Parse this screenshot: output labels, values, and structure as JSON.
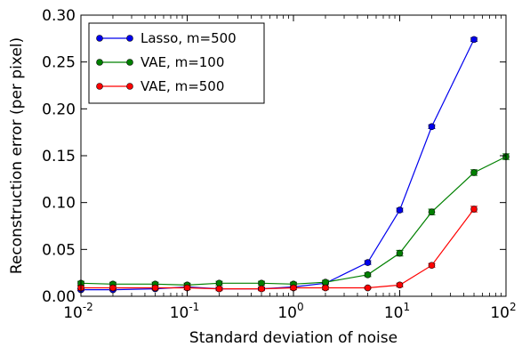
{
  "chart_data": {
    "type": "line",
    "title": "",
    "xlabel": "Standard deviation of noise",
    "ylabel": "Reconstruction error (per pixel)",
    "xscale": "log",
    "xlim": [
      0.01,
      100
    ],
    "ylim": [
      0,
      0.3
    ],
    "xticks": [
      {
        "value": 0.01,
        "base": "10",
        "exp": "-2"
      },
      {
        "value": 0.1,
        "base": "10",
        "exp": "-1"
      },
      {
        "value": 1,
        "base": "10",
        "exp": "0"
      },
      {
        "value": 10,
        "base": "10",
        "exp": "1"
      },
      {
        "value": 100,
        "base": "10",
        "exp": "2"
      }
    ],
    "yticks": [
      {
        "value": 0.0,
        "label": "0.00"
      },
      {
        "value": 0.05,
        "label": "0.05"
      },
      {
        "value": 0.1,
        "label": "0.10"
      },
      {
        "value": 0.15,
        "label": "0.15"
      },
      {
        "value": 0.2,
        "label": "0.20"
      },
      {
        "value": 0.25,
        "label": "0.25"
      },
      {
        "value": 0.3,
        "label": "0.30"
      }
    ],
    "grid": false,
    "legend_position": "top-left",
    "x": [
      0.01,
      0.02,
      0.05,
      0.1,
      0.2,
      0.5,
      1,
      2,
      5,
      10,
      20,
      50,
      100
    ],
    "series": [
      {
        "name": "Lasso, m=500",
        "color": "#0000ee",
        "x": [
          0.01,
          0.02,
          0.05,
          0.1,
          0.2,
          0.5,
          1,
          2,
          5,
          10,
          20,
          50
        ],
        "values": [
          0.007,
          0.007,
          0.008,
          0.01,
          0.008,
          0.008,
          0.01,
          0.014,
          0.036,
          0.092,
          0.181,
          0.274
        ],
        "errors": [
          0.001,
          0.001,
          0.001,
          0.001,
          0.001,
          0.001,
          0.001,
          0.001,
          0.002,
          0.002,
          0.002,
          0.002
        ]
      },
      {
        "name": "VAE, m=100",
        "color": "#008000",
        "x": [
          0.01,
          0.02,
          0.05,
          0.1,
          0.2,
          0.5,
          1,
          2,
          5,
          10,
          20,
          50,
          100
        ],
        "values": [
          0.014,
          0.013,
          0.013,
          0.012,
          0.014,
          0.014,
          0.013,
          0.015,
          0.023,
          0.046,
          0.09,
          0.132,
          0.149
        ],
        "errors": [
          0.002,
          0.002,
          0.002,
          0.002,
          0.002,
          0.002,
          0.002,
          0.002,
          0.002,
          0.003,
          0.003,
          0.003,
          0.003
        ]
      },
      {
        "name": "VAE, m=500",
        "color": "#ff0000",
        "x": [
          0.01,
          0.02,
          0.05,
          0.1,
          0.2,
          0.5,
          1,
          2,
          5,
          10,
          20,
          50
        ],
        "values": [
          0.009,
          0.009,
          0.009,
          0.009,
          0.008,
          0.008,
          0.009,
          0.009,
          0.009,
          0.012,
          0.033,
          0.093
        ],
        "errors": [
          0.002,
          0.002,
          0.002,
          0.002,
          0.002,
          0.002,
          0.002,
          0.002,
          0.001,
          0.002,
          0.002,
          0.003
        ]
      }
    ]
  }
}
